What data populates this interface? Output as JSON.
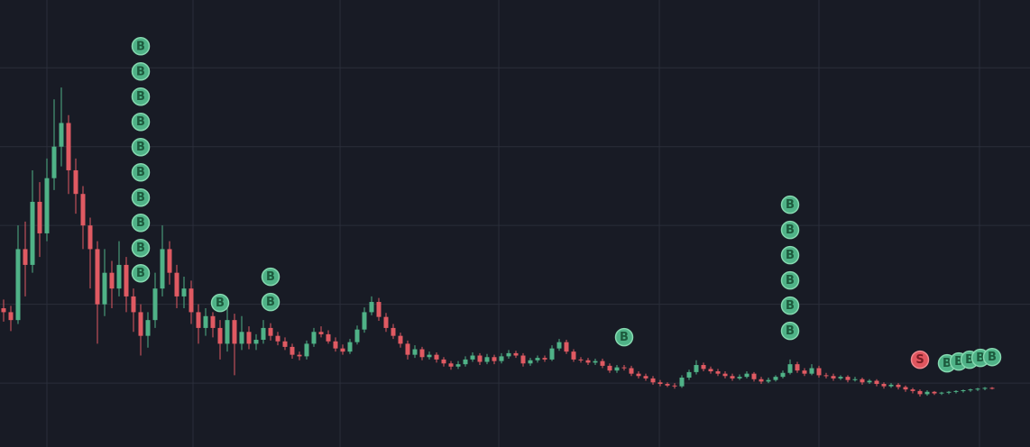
{
  "chart_data": {
    "type": "candlestick",
    "up_color": "#4fb287",
    "down_color": "#e05a62",
    "grid": true,
    "xlim": [
      -0.5,
      142.25
    ],
    "ylim": [
      1.9,
      58.6
    ],
    "xticks": [
      6,
      26.25,
      46.63,
      68.63,
      90.88,
      113,
      135.25
    ],
    "yticks": [
      10,
      20,
      30,
      40,
      50
    ],
    "candles": [
      [
        19.5,
        20.6,
        17.8,
        19.0
      ],
      [
        19.0,
        19.8,
        16.6,
        18.0
      ],
      [
        18.0,
        30.0,
        17.5,
        27.0
      ],
      [
        27.0,
        30.5,
        21.0,
        25.0
      ],
      [
        25.0,
        37.0,
        24.0,
        33.0
      ],
      [
        33.0,
        35.5,
        26.0,
        29.0
      ],
      [
        29.0,
        38.5,
        28.0,
        36.0
      ],
      [
        36.0,
        46.0,
        34.5,
        40.0
      ],
      [
        40.0,
        47.5,
        37.5,
        43.0
      ],
      [
        43.0,
        44.0,
        34.0,
        37.0
      ],
      [
        37.0,
        38.5,
        31.5,
        34.0
      ],
      [
        34.0,
        35.0,
        27.0,
        30.0
      ],
      [
        30.0,
        31.0,
        22.0,
        27.0
      ],
      [
        27.0,
        28.0,
        15.0,
        20.0
      ],
      [
        20.0,
        27.0,
        18.5,
        24.0
      ],
      [
        24.0,
        25.5,
        19.5,
        22.0
      ],
      [
        22.0,
        28.0,
        21.0,
        25.0
      ],
      [
        25.0,
        26.0,
        19.0,
        21.0
      ],
      [
        21.0,
        22.0,
        16.5,
        19.0
      ],
      [
        19.0,
        20.0,
        13.5,
        16.0
      ],
      [
        16.0,
        19.0,
        14.5,
        18.0
      ],
      [
        18.0,
        24.0,
        17.0,
        22.0
      ],
      [
        22.0,
        30.0,
        21.0,
        27.0
      ],
      [
        27.0,
        28.0,
        22.5,
        24.0
      ],
      [
        24.0,
        25.0,
        19.5,
        21.0
      ],
      [
        21.0,
        23.5,
        19.5,
        22.0
      ],
      [
        22.0,
        23.0,
        17.5,
        19.0
      ],
      [
        19.0,
        20.0,
        15.0,
        17.0
      ],
      [
        17.0,
        19.5,
        16.0,
        18.5
      ],
      [
        18.5,
        19.0,
        15.8,
        17.0
      ],
      [
        17.0,
        18.0,
        13.0,
        15.0
      ],
      [
        15.0,
        19.5,
        14.0,
        18.0
      ],
      [
        18.0,
        18.8,
        11.0,
        15.0
      ],
      [
        15.0,
        18.5,
        14.2,
        16.5
      ],
      [
        16.5,
        17.2,
        14.3,
        15.0
      ],
      [
        15.0,
        16.2,
        14.2,
        15.5
      ],
      [
        15.5,
        18.0,
        15.0,
        17.0
      ],
      [
        17.0,
        17.6,
        15.4,
        16.0
      ],
      [
        16.0,
        16.5,
        14.8,
        15.3
      ],
      [
        15.3,
        15.8,
        14.2,
        14.6
      ],
      [
        14.6,
        15.0,
        13.1,
        13.6
      ],
      [
        13.6,
        14.0,
        12.9,
        13.4
      ],
      [
        13.4,
        15.4,
        13.0,
        15.0
      ],
      [
        15.0,
        17.0,
        14.6,
        16.5
      ],
      [
        16.5,
        17.2,
        15.8,
        16.2
      ],
      [
        16.2,
        16.7,
        15.0,
        15.3
      ],
      [
        15.3,
        15.8,
        14.0,
        14.4
      ],
      [
        14.4,
        14.9,
        13.6,
        14.0
      ],
      [
        14.0,
        15.6,
        13.7,
        15.2
      ],
      [
        15.2,
        17.3,
        14.9,
        16.8
      ],
      [
        16.8,
        19.6,
        16.4,
        19.0
      ],
      [
        19.0,
        21.0,
        18.6,
        20.3
      ],
      [
        20.3,
        20.8,
        17.9,
        18.4
      ],
      [
        18.4,
        18.9,
        16.5,
        17.0
      ],
      [
        17.0,
        17.5,
        15.6,
        16.0
      ],
      [
        16.0,
        16.4,
        14.5,
        15.0
      ],
      [
        15.0,
        15.4,
        13.0,
        13.6
      ],
      [
        13.6,
        14.8,
        13.2,
        14.3
      ],
      [
        14.3,
        14.6,
        12.9,
        13.3
      ],
      [
        13.3,
        14.0,
        13.0,
        13.6
      ],
      [
        13.6,
        13.9,
        12.6,
        13.0
      ],
      [
        13.0,
        13.3,
        12.1,
        12.5
      ],
      [
        12.5,
        12.8,
        11.7,
        12.1
      ],
      [
        12.1,
        12.8,
        11.8,
        12.4
      ],
      [
        12.4,
        13.4,
        12.1,
        13.0
      ],
      [
        13.0,
        13.9,
        12.7,
        13.5
      ],
      [
        13.5,
        13.8,
        12.3,
        12.7
      ],
      [
        12.7,
        13.7,
        12.4,
        13.3
      ],
      [
        13.3,
        13.6,
        12.4,
        12.8
      ],
      [
        12.8,
        13.8,
        12.5,
        13.4
      ],
      [
        13.4,
        14.2,
        13.1,
        13.8
      ],
      [
        13.8,
        14.1,
        13.2,
        13.5
      ],
      [
        13.5,
        13.8,
        12.1,
        12.5
      ],
      [
        12.5,
        13.2,
        12.2,
        12.9
      ],
      [
        12.9,
        13.5,
        12.6,
        13.2
      ],
      [
        13.2,
        13.5,
        12.7,
        13.0
      ],
      [
        13.0,
        14.8,
        12.8,
        14.4
      ],
      [
        14.4,
        15.6,
        14.1,
        15.2
      ],
      [
        15.2,
        15.5,
        13.7,
        14.0
      ],
      [
        14.0,
        14.3,
        12.7,
        13.0
      ],
      [
        13.0,
        13.3,
        12.6,
        12.9
      ],
      [
        12.9,
        13.2,
        12.3,
        12.6
      ],
      [
        12.6,
        13.1,
        12.3,
        12.8
      ],
      [
        12.8,
        13.1,
        11.9,
        12.2
      ],
      [
        12.2,
        12.5,
        11.3,
        11.6
      ],
      [
        11.6,
        12.3,
        11.3,
        12.0
      ],
      [
        12.0,
        12.3,
        11.6,
        11.9
      ],
      [
        11.9,
        12.2,
        10.9,
        11.2
      ],
      [
        11.2,
        11.5,
        10.6,
        10.9
      ],
      [
        10.9,
        11.2,
        10.3,
        10.6
      ],
      [
        10.6,
        10.9,
        9.8,
        10.1
      ],
      [
        10.1,
        10.4,
        9.6,
        9.9
      ],
      [
        9.9,
        10.1,
        9.5,
        9.7
      ],
      [
        9.7,
        10.0,
        9.3,
        9.6
      ],
      [
        9.6,
        11.0,
        9.4,
        10.7
      ],
      [
        10.7,
        11.7,
        10.4,
        11.4
      ],
      [
        11.4,
        12.9,
        11.1,
        12.3
      ],
      [
        12.3,
        12.6,
        11.5,
        11.8
      ],
      [
        11.8,
        12.1,
        11.2,
        11.5
      ],
      [
        11.5,
        11.8,
        10.9,
        11.2
      ],
      [
        11.2,
        11.5,
        10.6,
        10.9
      ],
      [
        10.9,
        11.2,
        10.3,
        10.6
      ],
      [
        10.6,
        11.1,
        10.4,
        10.8
      ],
      [
        10.8,
        11.5,
        10.6,
        11.2
      ],
      [
        11.2,
        11.4,
        10.2,
        10.5
      ],
      [
        10.5,
        10.8,
        9.9,
        10.2
      ],
      [
        10.2,
        10.7,
        10.0,
        10.4
      ],
      [
        10.4,
        11.0,
        10.2,
        10.8
      ],
      [
        10.8,
        11.6,
        10.6,
        11.3
      ],
      [
        11.3,
        13.0,
        11.1,
        12.4
      ],
      [
        12.4,
        12.7,
        11.3,
        11.6
      ],
      [
        11.6,
        11.9,
        10.9,
        11.2
      ],
      [
        11.2,
        12.4,
        11.0,
        11.9
      ],
      [
        11.9,
        12.2,
        10.7,
        11.0
      ],
      [
        11.0,
        11.3,
        10.6,
        10.9
      ],
      [
        10.9,
        11.2,
        10.3,
        10.6
      ],
      [
        10.6,
        11.0,
        10.4,
        10.8
      ],
      [
        10.8,
        11.0,
        10.1,
        10.4
      ],
      [
        10.4,
        10.8,
        10.2,
        10.5
      ],
      [
        10.5,
        10.7,
        9.8,
        10.1
      ],
      [
        10.1,
        10.5,
        9.9,
        10.3
      ],
      [
        10.3,
        10.5,
        9.6,
        9.9
      ],
      [
        9.9,
        10.1,
        9.3,
        9.6
      ],
      [
        9.6,
        10.0,
        9.4,
        9.8
      ],
      [
        9.8,
        10.0,
        9.2,
        9.5
      ],
      [
        9.5,
        9.7,
        8.9,
        9.2
      ],
      [
        9.2,
        9.4,
        8.7,
        9.0
      ],
      [
        9.0,
        9.2,
        8.3,
        8.6
      ],
      [
        8.6,
        9.1,
        8.4,
        8.9
      ],
      [
        8.9,
        9.0,
        8.5,
        8.7
      ],
      [
        8.7,
        8.9,
        8.5,
        8.8
      ],
      [
        8.8,
        9.0,
        8.6,
        8.9
      ],
      [
        8.9,
        9.1,
        8.7,
        9.0
      ],
      [
        9.0,
        9.2,
        8.8,
        9.1
      ],
      [
        9.1,
        9.3,
        8.9,
        9.2
      ],
      [
        9.2,
        9.4,
        9.0,
        9.3
      ],
      [
        9.3,
        9.5,
        9.1,
        9.4
      ],
      [
        9.4,
        9.5,
        9.2,
        9.3
      ]
    ],
    "markers": [
      {
        "label": "B",
        "x": 19,
        "y": 52.74
      },
      {
        "label": "B",
        "x": 19,
        "y": 49.54
      },
      {
        "label": "B",
        "x": 19,
        "y": 46.34
      },
      {
        "label": "B",
        "x": 19,
        "y": 43.14
      },
      {
        "label": "B",
        "x": 19,
        "y": 39.94
      },
      {
        "label": "B",
        "x": 19,
        "y": 36.74
      },
      {
        "label": "B",
        "x": 19,
        "y": 33.54
      },
      {
        "label": "B",
        "x": 19,
        "y": 30.34
      },
      {
        "label": "B",
        "x": 19,
        "y": 27.14
      },
      {
        "label": "B",
        "x": 19,
        "y": 23.94
      },
      {
        "label": "B",
        "x": 30,
        "y": 20.17
      },
      {
        "label": "B",
        "x": 37,
        "y": 23.49
      },
      {
        "label": "B",
        "x": 37,
        "y": 20.29
      },
      {
        "label": "B",
        "x": 86,
        "y": 15.83
      },
      {
        "label": "B",
        "x": 109,
        "y": 32.63
      },
      {
        "label": "B",
        "x": 109,
        "y": 29.43
      },
      {
        "label": "B",
        "x": 109,
        "y": 26.23
      },
      {
        "label": "B",
        "x": 109,
        "y": 23.03
      },
      {
        "label": "B",
        "x": 109,
        "y": 19.83
      },
      {
        "label": "B",
        "x": 109,
        "y": 16.63
      },
      {
        "label": "S",
        "x": 127,
        "y": 12.97
      },
      {
        "label": "B",
        "x": 130.75,
        "y": 12.51
      },
      {
        "label": "B",
        "x": 132.38,
        "y": 12.74
      },
      {
        "label": "B",
        "x": 133.88,
        "y": 12.97
      },
      {
        "label": "B",
        "x": 135.38,
        "y": 13.2
      },
      {
        "label": "B",
        "x": 137,
        "y": 13.31
      }
    ]
  }
}
